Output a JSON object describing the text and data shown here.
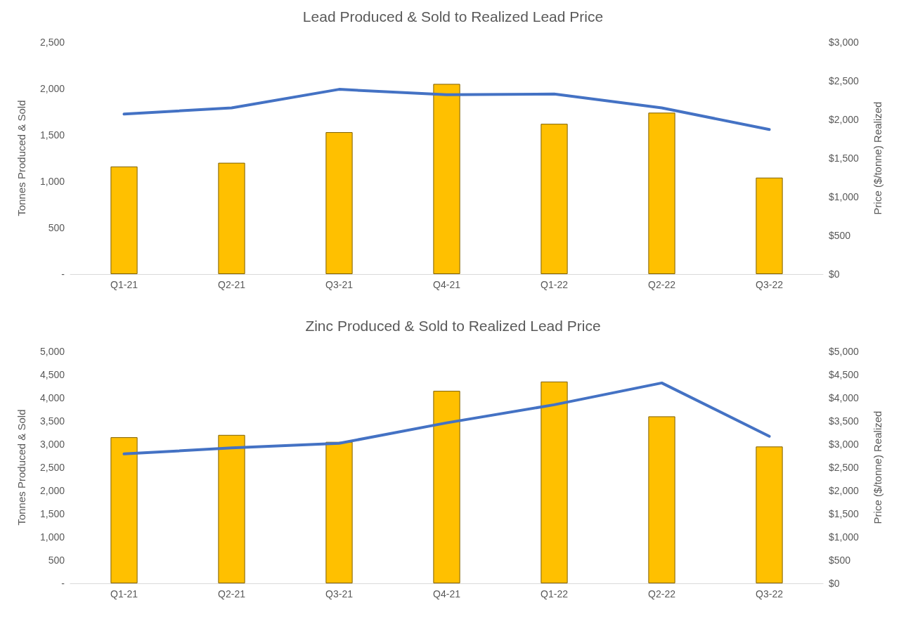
{
  "chart_data": [
    {
      "type": "bar",
      "title": "Lead Produced & Sold to Realized Lead Price",
      "ylabel": "Tonnes Produced & Sold",
      "y2label": "Price ($/tonne) Realized",
      "categories": [
        "Q1-21",
        "Q2-21",
        "Q3-21",
        "Q4-21",
        "Q1-22",
        "Q2-22",
        "Q3-22"
      ],
      "series": [
        {
          "color": "#ffc000",
          "values": [
            1160,
            1200,
            1530,
            2050,
            1620,
            1740,
            1040
          ]
        },
        {
          "type": "line",
          "axis": "y2",
          "color": "#4472c4",
          "values": [
            2070,
            2150,
            2390,
            2320,
            2330,
            2150,
            1870
          ]
        }
      ],
      "ylim": [
        0,
        2500
      ],
      "yticks": [
        {
          "value": 0,
          "label": "-"
        },
        {
          "value": 500,
          "label": "500"
        },
        {
          "value": 1000,
          "label": "1,000"
        },
        {
          "value": 1500,
          "label": "1,500"
        },
        {
          "value": 2000,
          "label": "2,000"
        },
        {
          "value": 2500,
          "label": "2,500"
        }
      ],
      "y2lim": [
        0,
        3000
      ],
      "y2ticks": [
        {
          "value": 0,
          "label": "$0"
        },
        {
          "value": 500,
          "label": "$500"
        },
        {
          "value": 1000,
          "label": "$1,000"
        },
        {
          "value": 1500,
          "label": "$1,500"
        },
        {
          "value": 2000,
          "label": "$2,000"
        },
        {
          "value": 2500,
          "label": "$2,500"
        },
        {
          "value": 3000,
          "label": "$3,000"
        }
      ],
      "grid": false,
      "marker": "none"
    },
    {
      "type": "bar",
      "title": "Zinc Produced & Sold to Realized Lead Price",
      "ylabel": "Tonnes Produced & Sold",
      "y2label": "Price ($/tonne) Realized",
      "categories": [
        "Q1-21",
        "Q2-21",
        "Q3-21",
        "Q4-21",
        "Q1-22",
        "Q2-22",
        "Q3-22"
      ],
      "series": [
        {
          "color": "#ffc000",
          "values": [
            3150,
            3200,
            3050,
            4150,
            4350,
            3600,
            2950
          ]
        },
        {
          "type": "line",
          "axis": "y2",
          "color": "#4472c4",
          "values": [
            2790,
            2920,
            3020,
            3460,
            3850,
            4320,
            3170
          ]
        }
      ],
      "ylim": [
        0,
        5000
      ],
      "yticks": [
        {
          "value": 0,
          "label": "-"
        },
        {
          "value": 500,
          "label": "500"
        },
        {
          "value": 1000,
          "label": "1,000"
        },
        {
          "value": 1500,
          "label": "1,500"
        },
        {
          "value": 2000,
          "label": "2,000"
        },
        {
          "value": 2500,
          "label": "2,500"
        },
        {
          "value": 3000,
          "label": "3,000"
        },
        {
          "value": 3500,
          "label": "3,500"
        },
        {
          "value": 4000,
          "label": "4,000"
        },
        {
          "value": 4500,
          "label": "4,500"
        },
        {
          "value": 5000,
          "label": "5,000"
        }
      ],
      "y2lim": [
        0,
        5000
      ],
      "y2ticks": [
        {
          "value": 0,
          "label": "$0"
        },
        {
          "value": 500,
          "label": "$500"
        },
        {
          "value": 1000,
          "label": "$1,000"
        },
        {
          "value": 1500,
          "label": "$1,500"
        },
        {
          "value": 2000,
          "label": "$2,000"
        },
        {
          "value": 2500,
          "label": "$2,500"
        },
        {
          "value": 3000,
          "label": "$3,000"
        },
        {
          "value": 3500,
          "label": "$3,500"
        },
        {
          "value": 4000,
          "label": "$4,000"
        },
        {
          "value": 4500,
          "label": "$4,500"
        },
        {
          "value": 5000,
          "label": "$5,000"
        }
      ],
      "grid": false,
      "marker": "none"
    }
  ]
}
